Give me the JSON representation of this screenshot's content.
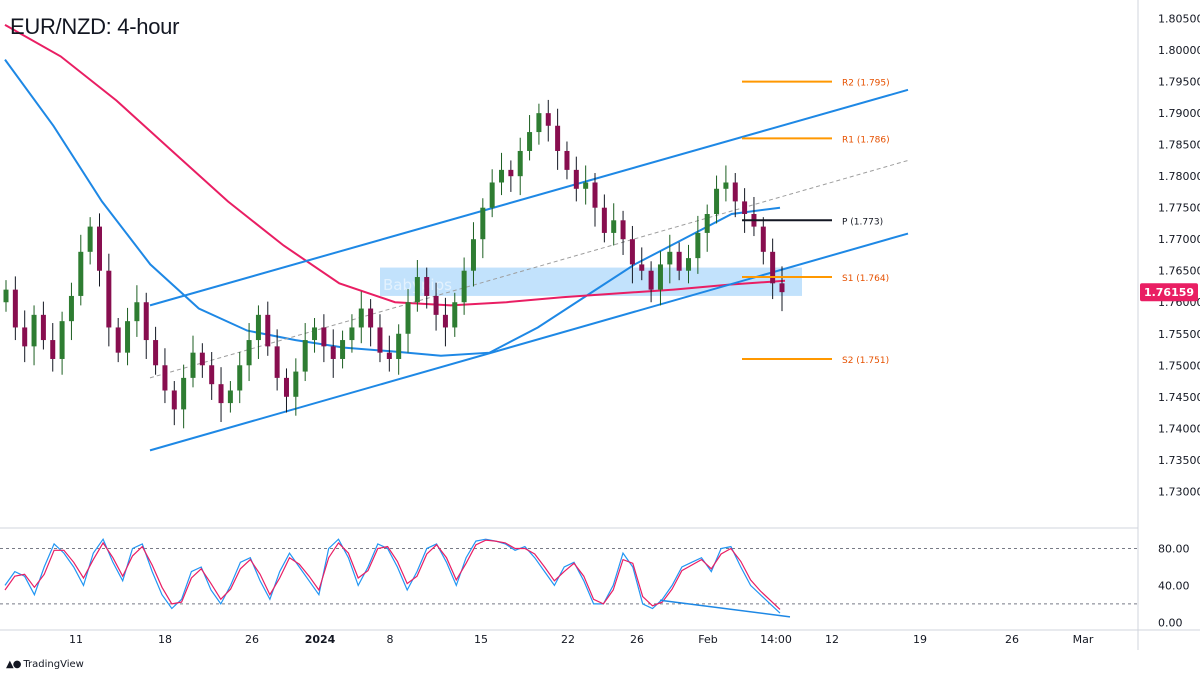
{
  "header": {
    "title": "EUR/NZD: 4-hour"
  },
  "brand": {
    "label": "TradingView",
    "logo_icon": "tradingview-logo-icon"
  },
  "chart_data": {
    "type": "candlestick",
    "price_axis": {
      "ticks": [
        "1.80500",
        "1.80000",
        "1.79500",
        "1.79000",
        "1.78500",
        "1.78000",
        "1.77500",
        "1.77000",
        "1.76500",
        "1.76000",
        "1.75500",
        "1.75000",
        "1.74500",
        "1.74000",
        "1.73500",
        "1.73000"
      ],
      "range": [
        1.7245,
        1.807
      ]
    },
    "current_price": {
      "label": "1.76159",
      "value": 1.76159,
      "color": "#e91e63"
    },
    "time_axis": {
      "ticks": [
        {
          "label": "11",
          "bold": false
        },
        {
          "label": "18",
          "bold": false
        },
        {
          "label": "26",
          "bold": false
        },
        {
          "label": "2024",
          "bold": true
        },
        {
          "label": "8",
          "bold": false
        },
        {
          "label": "15",
          "bold": false
        },
        {
          "label": "22",
          "bold": false
        },
        {
          "label": "26",
          "bold": false
        },
        {
          "label": "Feb",
          "bold": false
        },
        {
          "label": "14:00",
          "bold": false
        },
        {
          "label": "12",
          "bold": false
        },
        {
          "label": "19",
          "bold": false
        },
        {
          "label": "26",
          "bold": false
        },
        {
          "label": "Mar",
          "bold": false
        }
      ]
    },
    "pivot_levels": [
      {
        "label": "R2 (1.795)",
        "value": 1.795,
        "color": "#ff9800"
      },
      {
        "label": "R1 (1.786)",
        "value": 1.786,
        "color": "#ff9800"
      },
      {
        "label": "P (1.773)",
        "value": 1.773,
        "color": "#131722"
      },
      {
        "label": "S1 (1.764)",
        "value": 1.764,
        "color": "#ff9800"
      },
      {
        "label": "S2 (1.751)",
        "value": 1.751,
        "color": "#ff9800"
      }
    ],
    "zone": {
      "label": "Babypips",
      "from": 1.761,
      "to": 1.7655,
      "color": "#90caf9"
    },
    "channel": {
      "color": "#1e88e5",
      "upper": [
        [
          1.7595
        ],
        [
          1.7937
        ]
      ],
      "lower": [
        [
          1.7365
        ],
        [
          1.7709
        ]
      ],
      "mid": [
        [
          1.748
        ],
        [
          1.7825
        ]
      ]
    },
    "moving_averages": [
      {
        "color": "#1e88e5",
        "values": [
          1.7985,
          1.788,
          1.776,
          1.766,
          1.759,
          1.7555,
          1.754,
          1.7528,
          1.7522,
          1.7515,
          1.752,
          1.756,
          1.761,
          1.766,
          1.77,
          1.774,
          1.775
        ]
      },
      {
        "color": "#e91e63",
        "values": [
          1.804,
          1.799,
          1.792,
          1.784,
          1.776,
          1.769,
          1.763,
          1.76,
          1.7595,
          1.76,
          1.7608,
          1.7614,
          1.762,
          1.7628,
          1.7634
        ]
      }
    ],
    "candles_close": [
      1.762,
      1.756,
      1.753,
      1.758,
      1.754,
      1.751,
      1.757,
      1.761,
      1.768,
      1.772,
      1.765,
      1.756,
      1.752,
      1.757,
      1.76,
      1.754,
      1.75,
      1.746,
      1.743,
      1.748,
      1.752,
      1.75,
      1.747,
      1.744,
      1.746,
      1.75,
      1.754,
      1.758,
      1.753,
      1.748,
      1.745,
      1.749,
      1.754,
      1.756,
      1.753,
      1.751,
      1.754,
      1.756,
      1.759,
      1.756,
      1.752,
      1.751,
      1.755,
      1.76,
      1.764,
      1.761,
      1.758,
      1.756,
      1.76,
      1.765,
      1.77,
      1.775,
      1.779,
      1.781,
      1.78,
      1.784,
      1.787,
      1.79,
      1.788,
      1.784,
      1.781,
      1.778,
      1.779,
      1.775,
      1.771,
      1.773,
      1.77,
      1.766,
      1.765,
      1.762,
      1.766,
      1.768,
      1.765,
      1.767,
      1.771,
      1.774,
      1.778,
      1.779,
      1.776,
      1.774,
      1.772,
      1.768,
      1.763,
      1.7616
    ],
    "oscillator": {
      "ticks": [
        "80.00",
        "40.00",
        "0.00"
      ],
      "levels": [
        80,
        20
      ],
      "range": [
        -5,
        100
      ],
      "k": [
        40,
        55,
        50,
        30,
        60,
        85,
        75,
        60,
        40,
        75,
        90,
        65,
        45,
        80,
        85,
        55,
        30,
        15,
        25,
        55,
        60,
        35,
        20,
        40,
        65,
        70,
        45,
        25,
        55,
        75,
        60,
        45,
        30,
        80,
        90,
        70,
        40,
        60,
        85,
        80,
        60,
        35,
        55,
        80,
        85,
        65,
        40,
        70,
        88,
        90,
        88,
        85,
        78,
        82,
        70,
        55,
        40,
        60,
        65,
        45,
        20,
        20,
        40,
        75,
        60,
        20,
        15,
        25,
        40,
        60,
        65,
        70,
        55,
        80,
        82,
        60,
        40,
        30,
        20,
        10
      ],
      "d": [
        35,
        50,
        52,
        38,
        52,
        78,
        78,
        65,
        48,
        68,
        86,
        70,
        50,
        72,
        82,
        62,
        38,
        20,
        22,
        48,
        58,
        42,
        25,
        36,
        58,
        68,
        52,
        30,
        48,
        70,
        63,
        50,
        35,
        70,
        86,
        75,
        48,
        56,
        80,
        82,
        66,
        42,
        50,
        74,
        84,
        70,
        46,
        64,
        84,
        89,
        88,
        86,
        80,
        80,
        74,
        60,
        45,
        55,
        64,
        50,
        25,
        20,
        35,
        68,
        64,
        28,
        18,
        22,
        36,
        56,
        62,
        68,
        58,
        74,
        80,
        66,
        46,
        34,
        24,
        14
      ],
      "divergence": [
        [
          24
        ],
        [
          6
        ]
      ]
    }
  }
}
